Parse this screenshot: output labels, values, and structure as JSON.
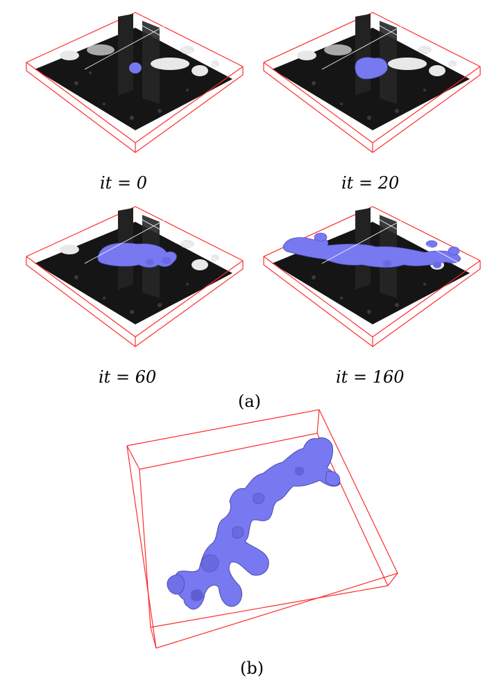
{
  "figure": {
    "panels": [
      {
        "iteration_label": "it = 0"
      },
      {
        "iteration_label": "it = 20"
      },
      {
        "iteration_label": "it = 60"
      },
      {
        "iteration_label": "it = 160"
      }
    ],
    "sublabel_a": "(a)",
    "sublabel_b": "(b)",
    "colors": {
      "box_edge": "#ff2a2a",
      "segmentation": "#7878f0",
      "slice_dark": "#151515",
      "slice_bright": "#e8e8e8"
    }
  }
}
